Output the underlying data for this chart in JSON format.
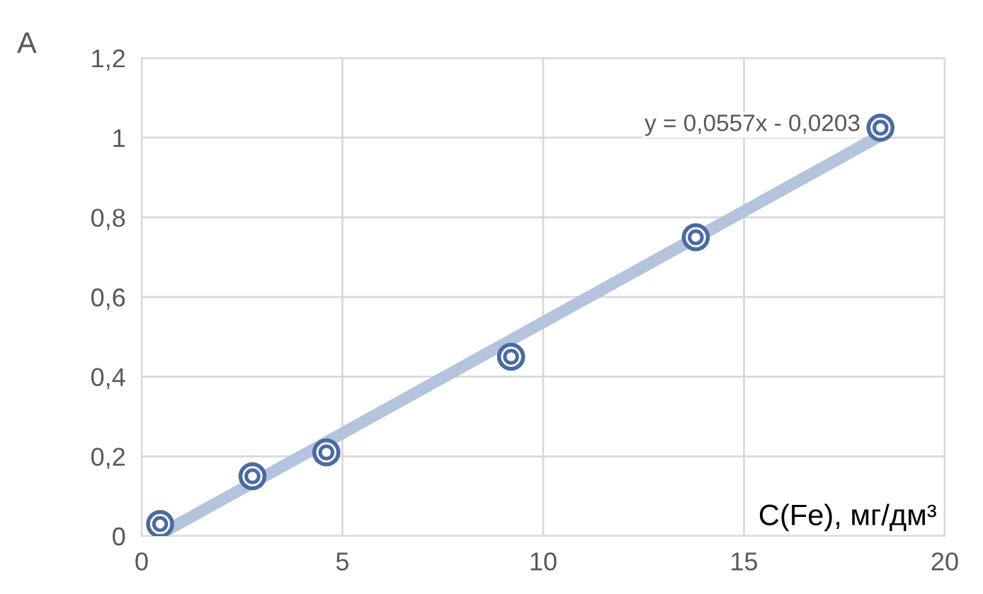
{
  "chart_data": {
    "type": "scatter",
    "xlabel": "C(Fe), мг/дм³",
    "ylabel": "A",
    "series": [
      {
        "color": "#4a6aa5",
        "marker": "circle",
        "x": [
          0.46,
          2.76,
          4.6,
          9.2,
          13.8,
          18.4
        ],
        "values": [
          0.03,
          0.15,
          0.21,
          0.45,
          0.75,
          1.025
        ]
      },
      {
        "type": "line",
        "color": "#b4c4dc",
        "marker": "none",
        "x": [
          0.46,
          18.4
        ],
        "values": [
          0.005,
          1.005
        ]
      }
    ],
    "annotations": [
      "y = 0,0557x - 0,0203"
    ],
    "xlim": [
      0,
      20
    ],
    "xticks": [
      0,
      5,
      10,
      15,
      20
    ],
    "ylim": [
      0,
      1.2
    ],
    "yticks": [
      0,
      {
        "value": 0.2,
        "label": "0,2"
      },
      {
        "value": 0.4,
        "label": "0,4"
      },
      {
        "value": 0.6,
        "label": "0,6"
      },
      {
        "value": 0.8,
        "label": "0,8"
      },
      1,
      {
        "value": 1.2,
        "label": "1,2"
      }
    ],
    "grid": true,
    "legend": false
  }
}
